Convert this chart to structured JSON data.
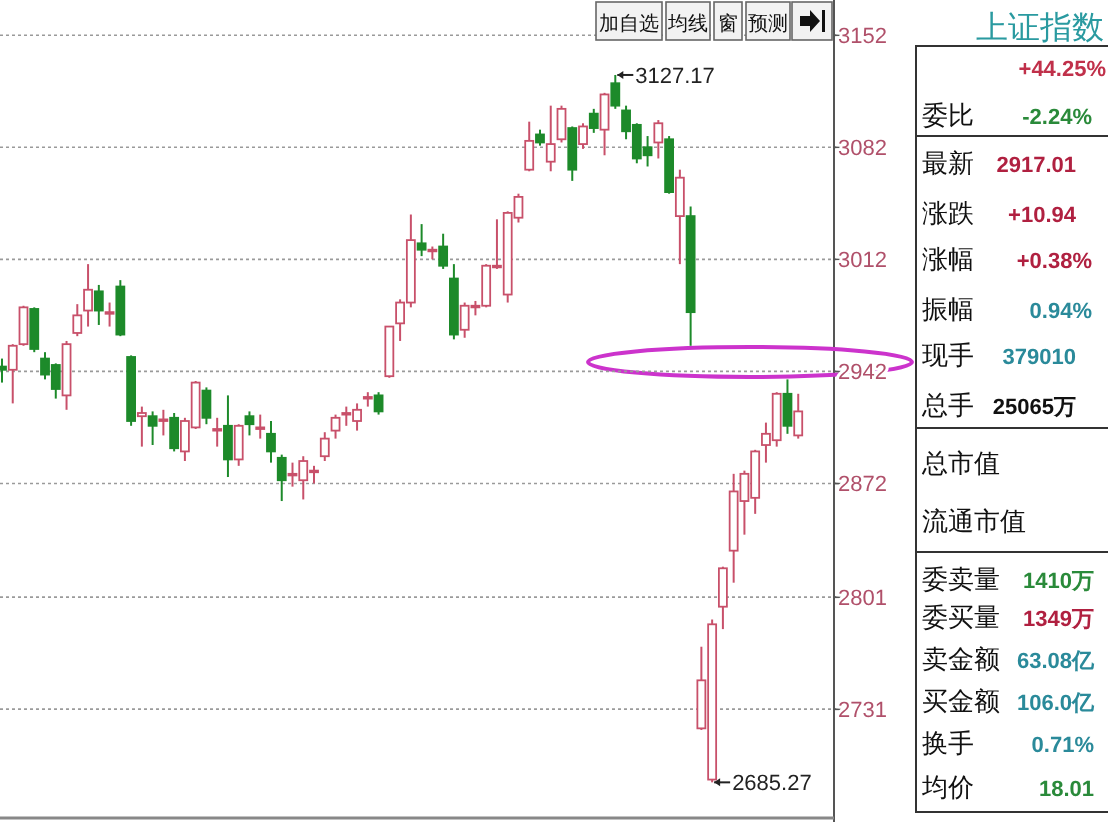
{
  "chart_data": [
    {
      "type": "candlestick",
      "categories": [
        null,
        null,
        null,
        null,
        null,
        null,
        null,
        null,
        null,
        null,
        null,
        null,
        null,
        null,
        null,
        null,
        null,
        null,
        null,
        null,
        null,
        null,
        null,
        null,
        null,
        null,
        null,
        null,
        null,
        null,
        null,
        null,
        null,
        null,
        null,
        null,
        null,
        null,
        null,
        null,
        null,
        null,
        null,
        null,
        null,
        null,
        null,
        null,
        null,
        null,
        null,
        null,
        null,
        null,
        null,
        null,
        null,
        null,
        null,
        null,
        null,
        null,
        null,
        null,
        null,
        null,
        null,
        null,
        null,
        null,
        null,
        null,
        null,
        null,
        null
      ],
      "ohlc": [
        [
          2945,
          2950,
          2935,
          2943
        ],
        [
          2943,
          2959,
          2922,
          2958
        ],
        [
          2959,
          2983,
          2958,
          2982
        ],
        [
          2981,
          2982,
          2954,
          2956
        ],
        [
          2950,
          2954,
          2937,
          2940
        ],
        [
          2946,
          2947,
          2925,
          2931
        ],
        [
          2927,
          2961,
          2918,
          2959
        ],
        [
          2966,
          2984,
          2964,
          2977
        ],
        [
          2980,
          3009,
          2970,
          2993
        ],
        [
          2992,
          2996,
          2971,
          2980
        ],
        [
          2978,
          2985,
          2970,
          2979
        ],
        [
          2995,
          2999,
          2964,
          2965
        ],
        [
          2951,
          2952,
          2908,
          2911
        ],
        [
          2914,
          2920,
          2895,
          2916
        ],
        [
          2914,
          2917,
          2896,
          2908
        ],
        [
          2911,
          2918,
          2902,
          2912
        ],
        [
          2913,
          2916,
          2892,
          2894
        ],
        [
          2892,
          2913,
          2886,
          2911
        ],
        [
          2907,
          2936,
          2906,
          2935
        ],
        [
          2930,
          2932,
          2909,
          2913
        ],
        [
          2905,
          2913,
          2895,
          2906
        ],
        [
          2908,
          2927,
          2876,
          2887
        ],
        [
          2887,
          2909,
          2883,
          2908
        ],
        [
          2914,
          2917,
          2902,
          2909
        ],
        [
          2906,
          2915,
          2900,
          2907
        ],
        [
          2903,
          2911,
          2885,
          2892
        ],
        [
          2888,
          2890,
          2861,
          2874
        ],
        [
          2877,
          2885,
          2870,
          2878
        ],
        [
          2874,
          2889,
          2862,
          2886
        ],
        [
          2879,
          2883,
          2872,
          2880
        ],
        [
          2889,
          2904,
          2886,
          2900
        ],
        [
          2905,
          2915,
          2900,
          2913
        ],
        [
          2915,
          2920,
          2908,
          2916
        ],
        [
          2911,
          2922,
          2905,
          2918
        ],
        [
          2925,
          2929,
          2920,
          2926
        ],
        [
          2927,
          2929,
          2915,
          2917
        ],
        [
          2939,
          2970,
          2938,
          2970
        ],
        [
          2972,
          2987,
          2961,
          2985
        ],
        [
          2985,
          3040,
          2982,
          3024
        ],
        [
          3022,
          3034,
          3014,
          3018
        ],
        [
          3017,
          3020,
          3012,
          3018
        ],
        [
          3020,
          3028,
          3006,
          3008
        ],
        [
          3000,
          3009,
          2962,
          2965
        ],
        [
          2968,
          2985,
          2963,
          2983
        ],
        [
          2982,
          2986,
          2977,
          2983
        ],
        [
          2983,
          3009,
          2982,
          3008
        ],
        [
          3007,
          3037,
          3006,
          3008
        ],
        [
          2990,
          3042,
          2985,
          3041
        ],
        [
          3038,
          3053,
          3035,
          3051
        ],
        [
          3068,
          3098,
          3067,
          3086
        ],
        [
          3090,
          3093,
          3083,
          3085
        ],
        [
          3073,
          3108,
          3067,
          3084
        ],
        [
          3087,
          3108,
          3085,
          3106
        ],
        [
          3094,
          3095,
          3061,
          3068
        ],
        [
          3084,
          3097,
          3081,
          3095
        ],
        [
          3103,
          3106,
          3091,
          3094
        ],
        [
          3093,
          3116,
          3077,
          3115
        ],
        [
          3122,
          3127.17,
          3106,
          3108
        ],
        [
          3105,
          3108,
          3087,
          3092
        ],
        [
          3096,
          3097,
          3072,
          3075
        ],
        [
          3082,
          3089,
          3070,
          3077
        ],
        [
          3085,
          3099,
          3075,
          3097
        ],
        [
          3087,
          3089,
          3053,
          3054
        ],
        [
          3039,
          3068,
          3009,
          3063
        ],
        [
          3039,
          3045,
          2958,
          2979
        ],
        [
          2719,
          2770,
          2718,
          2749
        ],
        [
          2687,
          2787,
          2685.27,
          2784
        ],
        [
          2795,
          2820,
          2781,
          2819
        ],
        [
          2830,
          2878,
          2810,
          2867
        ],
        [
          2861,
          2880,
          2840,
          2878
        ],
        [
          2863,
          2893,
          2853,
          2892
        ],
        [
          2896,
          2910,
          2885,
          2903
        ],
        [
          2899,
          2929,
          2895,
          2928
        ],
        [
          2928,
          2937,
          2903,
          2908
        ],
        [
          2902,
          2928,
          2900,
          2917
        ]
      ],
      "ylim": [
        2663,
        3174
      ],
      "yticks": [
        3152,
        3082,
        3012,
        2942,
        2872,
        2801,
        2731
      ],
      "grid": "y",
      "annotations": [
        "加自选",
        "均线",
        "窗",
        "预测",
        "3127.17",
        "2685.27"
      ]
    },
    {
      "type": "other",
      "title": "上证指数",
      "annotations": [
        "+44.25%",
        "委比",
        "-2.24%",
        "最新",
        "2917.01",
        "涨跌",
        "+10.94",
        "涨幅",
        "+0.38%",
        "振幅",
        "0.94%",
        "现手",
        "379010",
        "总手",
        "25065万",
        "总市值",
        "流通市值",
        "委卖量",
        "1410万",
        "委买量",
        "1349万",
        "卖金额",
        "63.08亿",
        "买金额",
        "106.0亿",
        "换手",
        "0.71%",
        "均价",
        "18.01"
      ]
    }
  ]
}
